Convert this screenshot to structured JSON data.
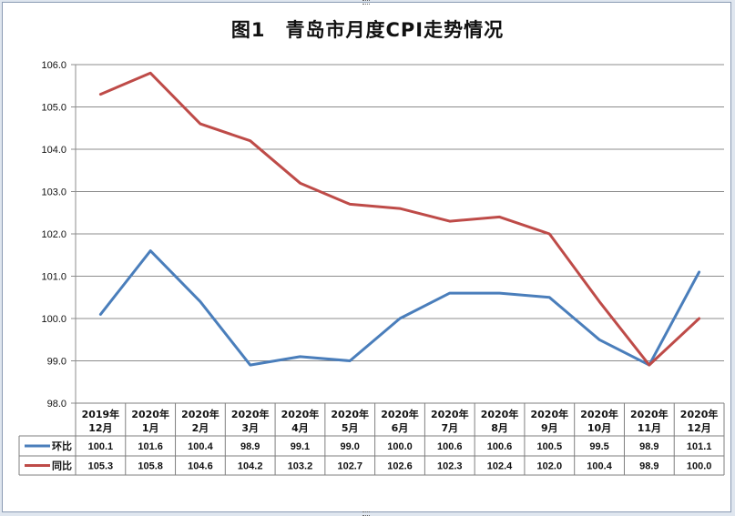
{
  "chart_data": {
    "type": "line",
    "title": "图1　青岛市月度CPI走势情况",
    "categories": [
      [
        "2019年",
        "12月"
      ],
      [
        "2020年",
        "1月"
      ],
      [
        "2020年",
        "2月"
      ],
      [
        "2020年",
        "3月"
      ],
      [
        "2020年",
        "4月"
      ],
      [
        "2020年",
        "5月"
      ],
      [
        "2020年",
        "6月"
      ],
      [
        "2020年",
        "7月"
      ],
      [
        "2020年",
        "8月"
      ],
      [
        "2020年",
        "9月"
      ],
      [
        "2020年",
        "10月"
      ],
      [
        "2020年",
        "11月"
      ],
      [
        "2020年",
        "12月"
      ]
    ],
    "ylim": [
      98.0,
      106.0
    ],
    "yticks": [
      "98.0",
      "99.0",
      "100.0",
      "101.0",
      "102.0",
      "103.0",
      "104.0",
      "105.0",
      "106.0"
    ],
    "grid": true,
    "legend": "data-table",
    "series": [
      {
        "name": "环比",
        "color": "#4a7ebb",
        "values": [
          100.1,
          101.6,
          100.4,
          98.9,
          99.1,
          99.0,
          100.0,
          100.6,
          100.6,
          100.5,
          99.5,
          98.9,
          101.1
        ],
        "labels": [
          "100.1",
          "101.6",
          "100.4",
          "98.9",
          "99.1",
          "99.0",
          "100.0",
          "100.6",
          "100.6",
          "100.5",
          "99.5",
          "98.9",
          "101.1"
        ]
      },
      {
        "name": "同比",
        "color": "#be4b48",
        "values": [
          105.3,
          105.8,
          104.6,
          104.2,
          103.2,
          102.7,
          102.6,
          102.3,
          102.4,
          102.0,
          100.4,
          98.9,
          100.0
        ],
        "labels": [
          "105.3",
          "105.8",
          "104.6",
          "104.2",
          "103.2",
          "102.7",
          "102.6",
          "102.3",
          "102.4",
          "102.0",
          "100.4",
          "98.9",
          "100.0"
        ]
      }
    ]
  }
}
